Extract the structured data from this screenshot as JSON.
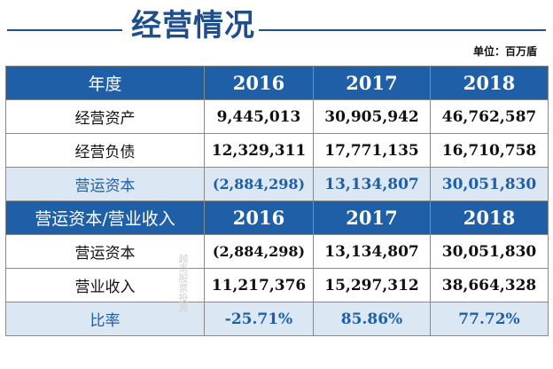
{
  "title": "经营情况",
  "unit": "单位：百万盾",
  "section1": {
    "header_label": "年度",
    "years": [
      "2016",
      "2017",
      "2018"
    ],
    "rows": [
      {
        "label": "经营资产",
        "values": [
          "9,445,013",
          "30,905,942",
          "46,762,587"
        ]
      },
      {
        "label": "经营负债",
        "values": [
          "12,329,311",
          "17,771,135",
          "16,710,758"
        ]
      },
      {
        "label": "营运资本",
        "values": [
          "(2,884,298)",
          "13,134,807",
          "30,051,830"
        ]
      }
    ]
  },
  "section2": {
    "header_label": "营运资本/营业收入",
    "years": [
      "2016",
      "2017",
      "2018"
    ],
    "rows": [
      {
        "label": "营运资本",
        "values": [
          "(2,884,298)",
          "13,134,807",
          "30,051,830"
        ]
      },
      {
        "label": "营业收入",
        "values": [
          "11,217,376",
          "15,297,312",
          "38,664,328"
        ]
      },
      {
        "label": "比率",
        "values": [
          "-25.71%",
          "85.86%",
          "77.72%"
        ]
      }
    ]
  },
  "watermark_vertical": "越南股票投资",
  "watermark_horizontal": "知乎 @water",
  "colors": {
    "header_bg": "#1f5fa8",
    "title": "#1f4e8c",
    "highlight_bg": "#dbe7f3"
  }
}
